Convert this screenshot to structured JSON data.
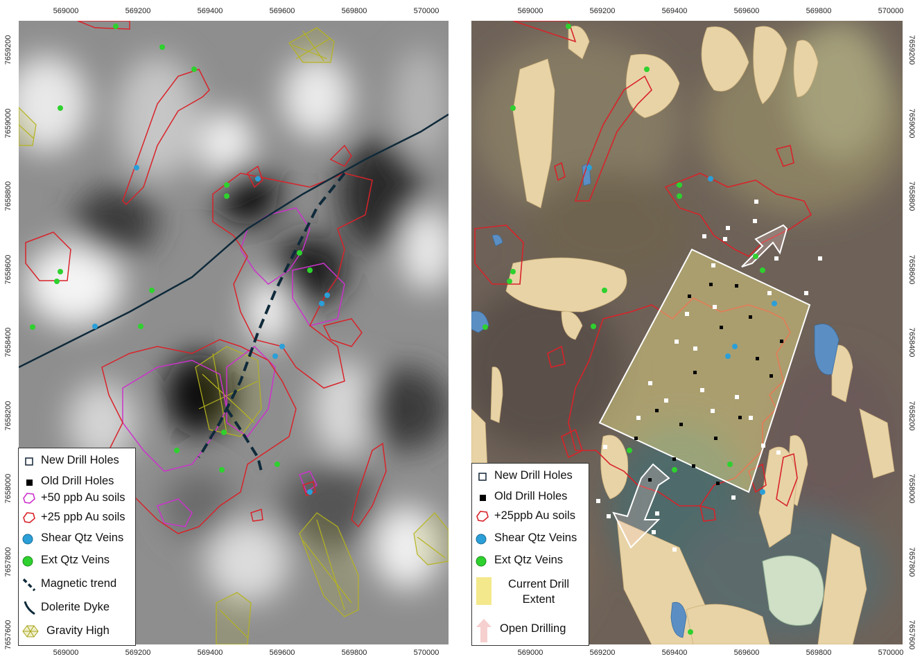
{
  "axes": {
    "easting_ticks": [
      "569000",
      "569200",
      "569400",
      "569600",
      "569800",
      "570000"
    ],
    "northing_ticks": [
      "7659200",
      "7659000",
      "7658800",
      "7658600",
      "7658400",
      "7658200",
      "7658000",
      "7657800",
      "7657600"
    ]
  },
  "left_map": {
    "layer": "magnetic-greyscale",
    "legend": {
      "items": [
        {
          "symbol": "hollow-square",
          "label": "New Drill Holes"
        },
        {
          "symbol": "filled-square",
          "label": "Old Drill Holes"
        },
        {
          "symbol": "magenta-polygon",
          "label": "+50 ppb Au soils"
        },
        {
          "symbol": "red-polygon",
          "label": "+25 ppb Au soils"
        },
        {
          "symbol": "blue-dot",
          "label": "Shear Qtz Veins"
        },
        {
          "symbol": "green-dot",
          "label": "Ext Qtz Veins"
        },
        {
          "symbol": "dashed-line",
          "label": "Magnetic trend"
        },
        {
          "symbol": "solid-curve",
          "label": "Dolerite Dyke"
        },
        {
          "symbol": "wireframe-blob",
          "label": "Gravity High"
        }
      ]
    }
  },
  "right_map": {
    "layer": "aerial-imagery",
    "legend": {
      "items": [
        {
          "symbol": "hollow-square",
          "label": "New Drill Holes"
        },
        {
          "symbol": "filled-square",
          "label": "Old Drill Holes"
        },
        {
          "symbol": "red-polygon",
          "label": "+25ppb Au soils"
        },
        {
          "symbol": "blue-dot",
          "label": "Shear Qtz Veins"
        },
        {
          "symbol": "green-dot",
          "label": "Ext Qtz Veins"
        },
        {
          "symbol": "yellow-box",
          "label": "Current Drill\nExtent"
        },
        {
          "symbol": "pink-arrow",
          "label": "Open Drilling"
        }
      ]
    }
  },
  "colors": {
    "au25": "#d8232a",
    "au50": "#cc33cc",
    "shear_veins": "#2b9fd8",
    "ext_veins": "#2ed12e",
    "dyke": "#0f2a3a",
    "gravity": "#b5b31c",
    "drill_extent": "#f4e88c",
    "sand": "#e8d3a6",
    "open_drilling_arrow": "#f6cfcf"
  }
}
